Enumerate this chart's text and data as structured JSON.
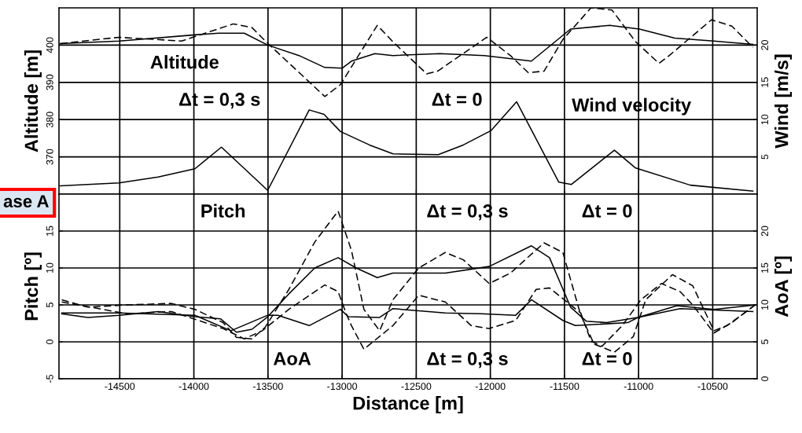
{
  "chart_data": [
    {
      "type": "line",
      "ylabel": "Altitude [m]",
      "y2label": "Wind [m/s]",
      "xlim": [
        -14910,
        -10200
      ],
      "xticks": [
        -14500,
        -14000,
        -13500,
        -13000,
        -12500,
        -12000,
        -11500,
        -11000,
        -10500
      ],
      "ylim": [
        360,
        410
      ],
      "yticks": [
        370,
        380,
        390,
        400
      ],
      "y2lim": [
        0,
        25
      ],
      "y2ticks": [
        5,
        10,
        15,
        20
      ],
      "tick_labels": "y",
      "grid": true,
      "annotations": [
        "Altitude",
        "Δt = 0,3 s",
        "Δt = 0",
        "Wind velocity",
        "ase A"
      ],
      "series": [
        {
          "color": "#000000",
          "line_style": "solid",
          "x": [
            -14901,
            -14505,
            -13977,
            -13835,
            -13660,
            -13502,
            -13291,
            -13117,
            -13000,
            -12937,
            -12779,
            -12657,
            -12340,
            -12040,
            -11723,
            -11459,
            -11195,
            -10994,
            -10756,
            -10492,
            -10229
          ],
          "values": [
            400.4,
            401.1,
            402.8,
            403.2,
            403.2,
            400.0,
            397.2,
            394.0,
            393.8,
            395.7,
            397.7,
            397.2,
            397.7,
            397.2,
            395.7,
            404.3,
            405.3,
            404.3,
            401.9,
            401.1,
            400.2
          ]
        },
        {
          "color": "#000000",
          "line_style": "dashed",
          "x": [
            -14901,
            -14505,
            -14083,
            -13734,
            -13608,
            -13518,
            -13117,
            -13011,
            -12763,
            -12657,
            -12430,
            -12356,
            -12024,
            -11865,
            -11744,
            -11638,
            -11511,
            -11321,
            -11179,
            -11020,
            -10862,
            -10793,
            -10508,
            -10371,
            -10229
          ],
          "values": [
            400.4,
            402.1,
            401.1,
            405.7,
            404.7,
            401.1,
            386.2,
            389.4,
            405.3,
            400.9,
            392.3,
            393.0,
            402.1,
            397.2,
            392.6,
            393.0,
            401.5,
            410.0,
            409.4,
            400.9,
            395.1,
            397.2,
            406.8,
            405.1,
            399.4
          ]
        },
        {
          "color": "#000000",
          "line_style": "solid",
          "axis": "y2",
          "x": [
            -14901,
            -14505,
            -14241,
            -13993,
            -13814,
            -13502,
            -13222,
            -13122,
            -13011,
            -12816,
            -12657,
            -12351,
            -12182,
            -11997,
            -11823,
            -11538,
            -11453,
            -11163,
            -11020,
            -10651,
            -10229
          ],
          "values": [
            1.1,
            1.5,
            2.3,
            3.4,
            6.3,
            0.5,
            11.3,
            10.7,
            8.4,
            6.6,
            5.4,
            5.3,
            6.6,
            8.5,
            12.4,
            1.6,
            1.3,
            5.9,
            3.5,
            1.2,
            0.4
          ]
        }
      ]
    },
    {
      "type": "line",
      "xlabel": "Distance [m]",
      "ylabel": "Pitch [º]",
      "y2label": "AoA [º]",
      "xlim": [
        -14910,
        -10200
      ],
      "xticks": [
        -14500,
        -14000,
        -13500,
        -13000,
        -12500,
        -12000,
        -11500,
        -11000,
        -10500
      ],
      "ylim": [
        -5,
        20
      ],
      "yticks": [
        -5,
        0,
        5,
        10,
        15
      ],
      "y2lim": [
        0,
        25
      ],
      "y2ticks": [
        0,
        5,
        10,
        15,
        20
      ],
      "grid": true,
      "annotations": [
        "Pitch",
        "Δt = 0,3 s",
        "Δt = 0",
        "AoA",
        "Δt = 0,3 s",
        "Δt = 0"
      ],
      "series": [
        {
          "color": "#000000",
          "line_style": "solid",
          "x": [
            -14891,
            -14716,
            -14505,
            -14241,
            -13993,
            -13819,
            -13713,
            -13608,
            -13502,
            -13359,
            -13185,
            -13027,
            -12905,
            -12763,
            -12657,
            -12304,
            -12008,
            -11723,
            -11601,
            -11459,
            -11353,
            -11216,
            -11005,
            -10741,
            -10492,
            -10213
          ],
          "values": [
            3.8,
            3.3,
            3.6,
            4.1,
            3.4,
            3.1,
            1.3,
            1.7,
            3.4,
            6.5,
            10.0,
            11.4,
            10.0,
            8.7,
            9.3,
            9.3,
            10.2,
            13.0,
            11.4,
            4.7,
            2.8,
            2.6,
            3.3,
            4.9,
            4.4,
            5.0
          ]
        },
        {
          "color": "#000000",
          "line_style": "dashed",
          "x": [
            -14891,
            -14716,
            -14452,
            -14152,
            -13993,
            -13803,
            -13713,
            -13608,
            -13518,
            -13359,
            -13185,
            -13027,
            -12937,
            -12853,
            -12747,
            -12657,
            -12483,
            -12304,
            -12182,
            -12008,
            -11865,
            -11638,
            -11511,
            -11390,
            -11300,
            -11163,
            -11036,
            -10952,
            -10772,
            -10635,
            -10492,
            -10403,
            -10213
          ],
          "values": [
            5.7,
            4.7,
            5.0,
            5.2,
            4.4,
            2.6,
            0.6,
            0.4,
            2.0,
            7.1,
            13.5,
            17.7,
            12.4,
            4.4,
            1.5,
            5.7,
            10.0,
            12.1,
            11.1,
            7.9,
            9.3,
            13.4,
            12.1,
            3.6,
            -0.3,
            -1.4,
            0.7,
            5.7,
            9.1,
            7.6,
            1.5,
            2.2,
            5.0
          ]
        },
        {
          "color": "#000000",
          "line_style": "solid",
          "axis": "y2",
          "x": [
            -14891,
            -14505,
            -13993,
            -13750,
            -13502,
            -13433,
            -13222,
            -13011,
            -12958,
            -12747,
            -12657,
            -12304,
            -12061,
            -11829,
            -11723,
            -11511,
            -11427,
            -11073,
            -11005,
            -10720,
            -10229
          ],
          "values": [
            8.9,
            8.9,
            8.6,
            6.5,
            8.6,
            8.6,
            7.2,
            9.4,
            8.4,
            8.3,
            9.5,
            8.9,
            8.8,
            8.6,
            10.7,
            7.9,
            7.2,
            7.6,
            8.3,
            9.5,
            9.1
          ]
        },
        {
          "color": "#000000",
          "line_style": "dashed",
          "axis": "y2",
          "x": [
            -14891,
            -14452,
            -14152,
            -13803,
            -13660,
            -13539,
            -13359,
            -13117,
            -13027,
            -12974,
            -12937,
            -12853,
            -12657,
            -12483,
            -12304,
            -12129,
            -12008,
            -11829,
            -11691,
            -11601,
            -11390,
            -11321,
            -11247,
            -11110,
            -10984,
            -10846,
            -10720,
            -10635,
            -10492,
            -10371,
            -10213
          ],
          "values": [
            10.4,
            8.8,
            9.1,
            6.8,
            5.4,
            6.5,
            9.4,
            12.7,
            11.8,
            8.9,
            7.2,
            4.0,
            7.2,
            11.3,
            10.4,
            7.2,
            6.8,
            7.9,
            12.1,
            12.3,
            8.9,
            5.1,
            4.4,
            7.2,
            10.7,
            12.9,
            11.8,
            10.0,
            6.2,
            7.6,
            10.0
          ]
        }
      ]
    }
  ]
}
